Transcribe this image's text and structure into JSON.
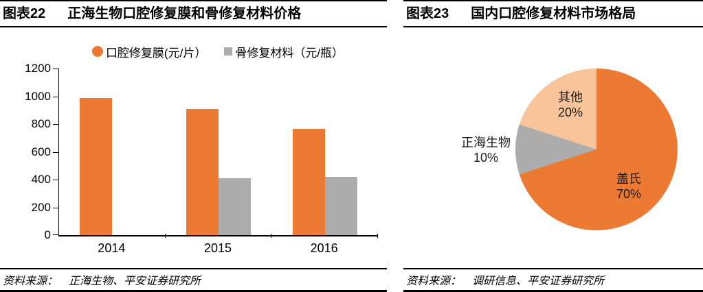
{
  "left_panel": {
    "title_label": "图表22",
    "title_text": "正海生物口腔修复膜和骨修复复材料价格",
    "source_prefix": "资料来源：",
    "source_text": "正海生物、平安证券研究所"
  },
  "right_panel": {
    "title_label": "图表23",
    "title_text": "国内口腔修复材料市场格局",
    "source_prefix": "资料来源：",
    "source_text": "调研信息、平安证券研究所"
  },
  "chart_data": [
    {
      "type": "bar",
      "title": "正海生物口腔修复膜和骨修复材料价格",
      "categories": [
        "2014",
        "2015",
        "2016"
      ],
      "series": [
        {
          "name": "口腔修复膜(元/片）",
          "color": "#EC7A33",
          "marker": "circle",
          "values": [
            990,
            910,
            765
          ]
        },
        {
          "name": "骨修复材料（元/瓶）",
          "color": "#ACACAC",
          "marker": "square",
          "values": [
            null,
            410,
            420
          ]
        }
      ],
      "xlabel": "",
      "ylabel": "",
      "ylim": [
        0,
        1200
      ],
      "yticks": [
        0,
        200,
        400,
        600,
        800,
        1000,
        1200
      ],
      "grid": false,
      "legend_position": "top"
    },
    {
      "type": "pie",
      "title": "国内口腔修复材料市场格局",
      "start_angle_deg": 0,
      "direction": "clockwise",
      "slices": [
        {
          "label": "盖氏",
          "value": 70,
          "pct_label": "70%",
          "color": "#EC7A33"
        },
        {
          "label": "正海生物",
          "value": 10,
          "pct_label": "10%",
          "color": "#ACACAC"
        },
        {
          "label": "其他",
          "value": 20,
          "pct_label": "20%",
          "color": "#F9C499"
        }
      ]
    }
  ],
  "colors": {
    "orange": "#EC7A33",
    "light_orange": "#F9C499",
    "gray": "#ACACAC",
    "rule_line": "#000000",
    "text": "#000000"
  }
}
